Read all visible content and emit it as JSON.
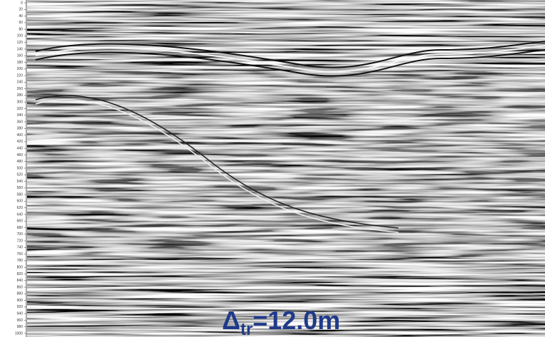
{
  "chart_data": {
    "type": "radargram",
    "ylim": [
      0,
      1000
    ],
    "yticks": [
      0,
      20,
      40,
      60,
      80,
      100,
      120,
      140,
      160,
      180,
      200,
      220,
      240,
      260,
      280,
      300,
      320,
      340,
      360,
      380,
      400,
      420,
      440,
      460,
      480,
      500,
      520,
      540,
      560,
      580,
      600,
      620,
      640,
      660,
      680,
      700,
      720,
      740,
      760,
      780,
      800,
      820,
      840,
      860,
      880,
      900,
      920,
      940,
      960,
      980,
      1000
    ],
    "annotation": {
      "symbol": "Δ",
      "subscript": "tr",
      "text": "=12.0m",
      "color": "#1f3a8a"
    }
  }
}
